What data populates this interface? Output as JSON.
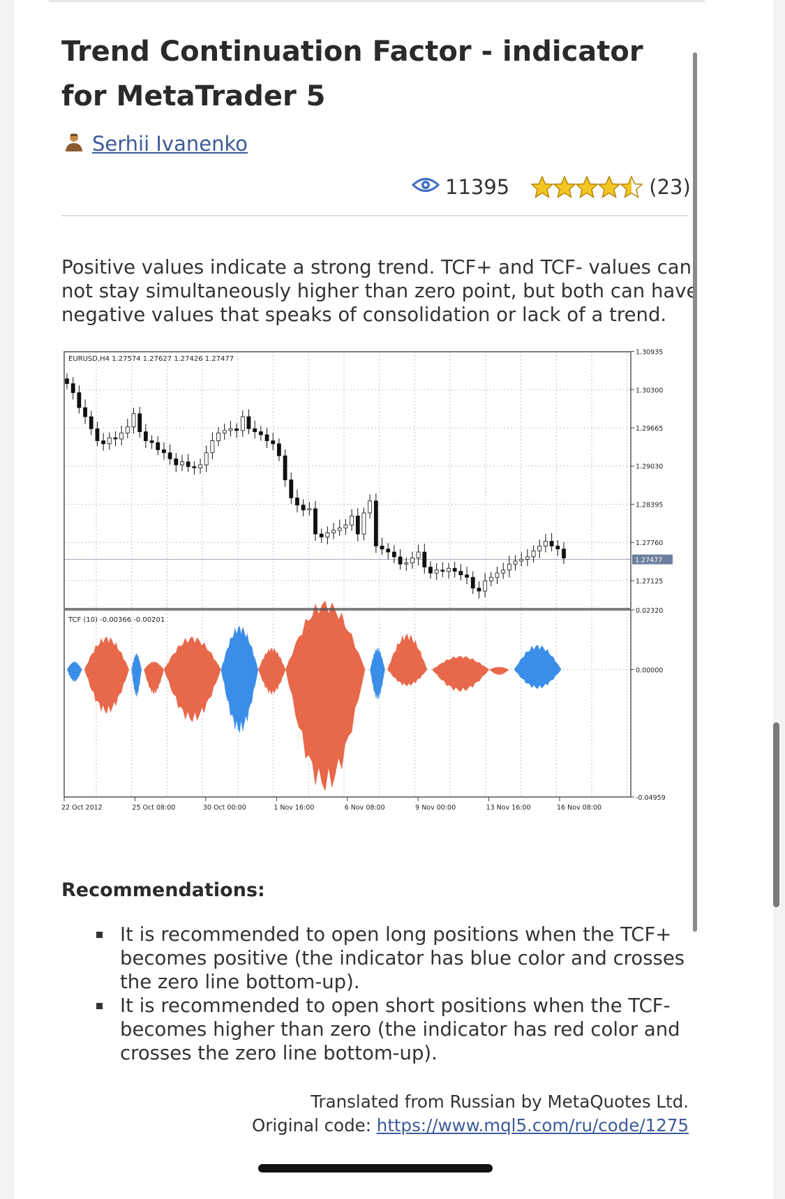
{
  "article": {
    "title": "Trend Continuation Factor - indicator for MetaTrader 5",
    "author": "Serhii Ivanenko",
    "views": "11395",
    "rating_count": "(23)",
    "stars": 4.5,
    "description": "Positive values indicate a strong trend. TCF+ and TCF- values can not stay simultaneously higher than zero point, but both can have negative values that speaks of consolidation or lack of a trend."
  },
  "chart_data": {
    "type": "candlestick",
    "price_panel": {
      "header": "EURUSD,H4 1.27574 1.27627 1.27426 1.27477",
      "y_ticks": [
        "1.30935",
        "1.30300",
        "1.29665",
        "1.29030",
        "1.28395",
        "1.27760",
        "1.27125"
      ],
      "current_price": "1.27477",
      "ylim": [
        1.2666,
        1.3093
      ],
      "close": [
        1.304,
        1.3025,
        1.3,
        1.2985,
        1.2965,
        1.2945,
        1.294,
        1.295,
        1.2948,
        1.2958,
        1.2968,
        1.299,
        1.296,
        1.2945,
        1.2942,
        1.293,
        1.2925,
        1.2915,
        1.2905,
        1.291,
        1.2902,
        1.29,
        1.2905,
        1.2925,
        1.2945,
        1.2958,
        1.2962,
        1.2965,
        1.2962,
        1.2985,
        1.2965,
        1.296,
        1.2955,
        1.2945,
        1.294,
        1.292,
        1.288,
        1.285,
        1.2838,
        1.283,
        1.2832,
        1.279,
        1.2785,
        1.2792,
        1.2796,
        1.28,
        1.2805,
        1.282,
        1.279,
        1.2825,
        1.2845,
        1.277,
        1.2765,
        1.276,
        1.2752,
        1.274,
        1.2742,
        1.275,
        1.276,
        1.2735,
        1.2725,
        1.273,
        1.2728,
        1.2733,
        1.2728,
        1.2722,
        1.2718,
        1.27,
        1.2695,
        1.2712,
        1.2718,
        1.2725,
        1.273,
        1.274,
        1.2745,
        1.2748,
        1.2752,
        1.2762,
        1.277,
        1.2778,
        1.277,
        1.2765,
        1.275
      ]
    },
    "indicator_panel": {
      "header": "TCF (10) -0.00366 -0.00201",
      "y_ticks": [
        "0.02320",
        "0.00000",
        "-0.04959"
      ],
      "ylim": [
        -0.04959,
        0.0232
      ],
      "series": [
        {
          "name": "TCF+",
          "color": "#3b8ee8"
        },
        {
          "name": "TCF-",
          "color": "#e8684a"
        }
      ]
    },
    "x_ticks": [
      "22 Oct 2012",
      "25 Oct 08:00",
      "30 Oct 00:00",
      "1 Nov 16:00",
      "6 Nov 08:00",
      "9 Nov 00:00",
      "13 Nov 16:00",
      "16 Nov 08:00"
    ]
  },
  "recommendations": {
    "heading": "Recommendations:",
    "items": [
      "It is recommended to open long positions when the TCF+ becomes positive (the indicator has blue color and crosses the zero line bottom-up).",
      "It is recommended to open short positions when the TCF- becomes higher than zero (the indicator has red color and crosses the zero line bottom-up)."
    ]
  },
  "footer": {
    "translated": "Translated from Russian by MetaQuotes Ltd.",
    "original_label": "Original code:",
    "original_url": "https://www.mql5.com/ru/code/1275"
  },
  "colors": {
    "link": "#3d5a99",
    "star": "#f3c623",
    "eye": "#3d6fc4"
  }
}
